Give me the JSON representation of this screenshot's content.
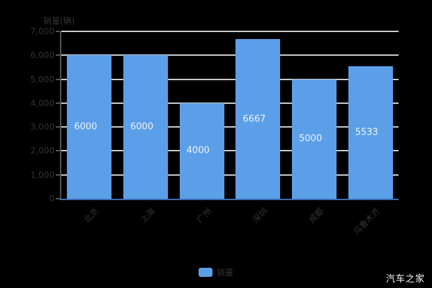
{
  "watermark": "汽车之家",
  "legend": {
    "label": "销量",
    "swatch_color": "#5B9FE8"
  },
  "colors": {
    "background": "#000000",
    "bar": "#5B9FE8",
    "gridline": "#CCCCCC",
    "y_axis_line": "#555555",
    "x_axis_line": "#3B6EB5",
    "axis_text": "#333333",
    "bar_value_text": "#ECF4FD",
    "watermark_text": "#FFFFFF"
  },
  "chart_data": {
    "type": "bar",
    "title": "",
    "ylabel": "销量(辆)",
    "xlabel": "",
    "categories": [
      "北京",
      "上海",
      "广州",
      "深圳",
      "成都",
      "乌鲁木齐"
    ],
    "series": [
      {
        "name": "销量",
        "values": [
          6000,
          6000,
          4000,
          6667,
          5000,
          5533
        ]
      }
    ],
    "value_labels": [
      "6000",
      "6000",
      "4000",
      "6667",
      "5000",
      "5533"
    ],
    "ylim": [
      0,
      7000
    ],
    "ytick_step": 1000,
    "ytick_labels": [
      "0",
      "1,000",
      "2,000",
      "3,000",
      "4,000",
      "5,000",
      "6,000",
      "7,000"
    ],
    "grid": true,
    "legend_position": "bottom"
  }
}
